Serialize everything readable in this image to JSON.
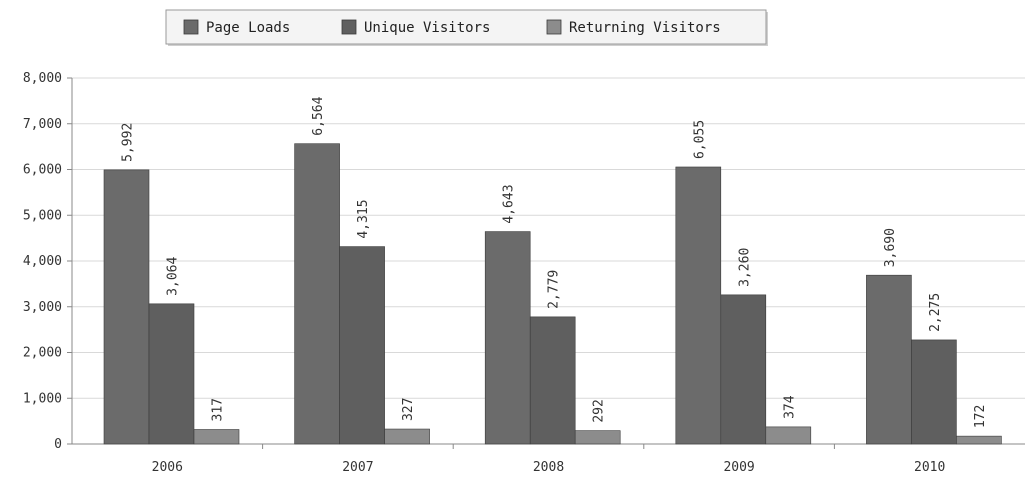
{
  "chart_data": {
    "type": "bar",
    "categories": [
      "2006",
      "2007",
      "2008",
      "2009",
      "2010"
    ],
    "series": [
      {
        "name": "Page Loads",
        "values": [
          5992,
          6564,
          4643,
          6055,
          3690
        ],
        "labels": [
          "5,992",
          "6,564",
          "4,643",
          "6,055",
          "3,690"
        ],
        "color": "#6b6b6b"
      },
      {
        "name": "Unique Visitors",
        "values": [
          3064,
          4315,
          2779,
          3260,
          2275
        ],
        "labels": [
          "3,064",
          "4,315",
          "2,779",
          "3,260",
          "2,275"
        ],
        "color": "#5f5f5f"
      },
      {
        "name": "Returning Visitors",
        "values": [
          317,
          327,
          292,
          374,
          172
        ],
        "labels": [
          "317",
          "327",
          "292",
          "374",
          "172"
        ],
        "color": "#8c8c8c"
      }
    ],
    "yticks": [
      "0",
      "1,000",
      "2,000",
      "3,000",
      "4,000",
      "5,000",
      "6,000",
      "7,000",
      "8,000"
    ],
    "ylim": [
      0,
      8000
    ],
    "grid": true,
    "legend": "top"
  }
}
